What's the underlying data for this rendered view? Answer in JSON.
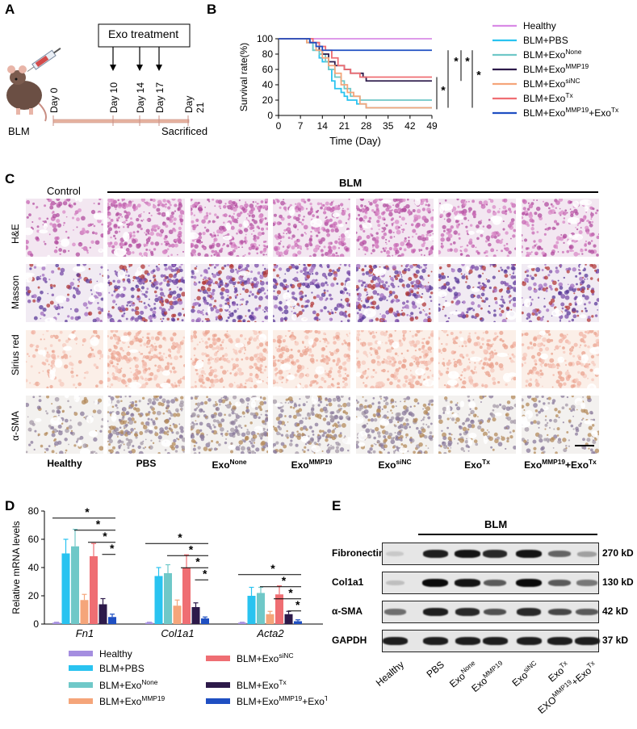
{
  "panels": {
    "a": "A",
    "b": "B",
    "c": "C",
    "d": "D",
    "e": "E"
  },
  "panel_a": {
    "treatment_label": "Exo treatment",
    "days": [
      "Day 0",
      "Day 10",
      "Day 14",
      "Day 17",
      "Day 21"
    ],
    "model_label": "BLM",
    "end_label": "Sacrificed"
  },
  "panel_b": {
    "chart_data": {
      "type": "line",
      "subtype": "kaplan-meier step",
      "xlabel": "Time (Day)",
      "ylabel": "Survival rate(%)",
      "xticks": [
        0,
        7,
        14,
        21,
        28,
        35,
        42,
        49
      ],
      "yticks": [
        0,
        20,
        40,
        60,
        80,
        100
      ],
      "xlim": [
        0,
        49
      ],
      "ylim": [
        0,
        100
      ],
      "significance": [
        "*",
        "*",
        "*",
        "*"
      ],
      "series": [
        {
          "name": "Healthy",
          "color": "#d98be6",
          "points": [
            [
              0,
              100
            ],
            [
              49,
              100
            ]
          ]
        },
        {
          "name": "BLM+PBS",
          "color": "#29c3f0",
          "points": [
            [
              0,
              100
            ],
            [
              7,
              100
            ],
            [
              9,
              95
            ],
            [
              11,
              85
            ],
            [
              13,
              75
            ],
            [
              14,
              70
            ],
            [
              16,
              60
            ],
            [
              17,
              45
            ],
            [
              18,
              35
            ],
            [
              20,
              30
            ],
            [
              21,
              25
            ],
            [
              22,
              20
            ],
            [
              25,
              15
            ],
            [
              28,
              10
            ],
            [
              49,
              10
            ]
          ]
        },
        {
          "name": "BLM+Exo",
          "sup": "None",
          "color": "#6fc8c8",
          "points": [
            [
              0,
              100
            ],
            [
              7,
              100
            ],
            [
              9,
              95
            ],
            [
              11,
              85
            ],
            [
              13,
              80
            ],
            [
              15,
              70
            ],
            [
              16,
              60
            ],
            [
              18,
              50
            ],
            [
              20,
              45
            ],
            [
              21,
              35
            ],
            [
              23,
              25
            ],
            [
              26,
              20
            ],
            [
              49,
              20
            ]
          ]
        },
        {
          "name": "BLM+Exo",
          "sup": "MMP19",
          "color": "#2d1a4a",
          "points": [
            [
              0,
              100
            ],
            [
              7,
              100
            ],
            [
              10,
              95
            ],
            [
              13,
              85
            ],
            [
              14,
              80
            ],
            [
              16,
              70
            ],
            [
              18,
              65
            ],
            [
              21,
              60
            ],
            [
              23,
              55
            ],
            [
              27,
              50
            ],
            [
              28,
              45
            ],
            [
              49,
              45
            ]
          ]
        },
        {
          "name": "BLM+Exo",
          "sup": "siNC",
          "color": "#f5a57a",
          "points": [
            [
              0,
              100
            ],
            [
              7,
              100
            ],
            [
              9,
              95
            ],
            [
              12,
              85
            ],
            [
              14,
              75
            ],
            [
              16,
              65
            ],
            [
              18,
              55
            ],
            [
              20,
              40
            ],
            [
              22,
              30
            ],
            [
              24,
              25
            ],
            [
              26,
              15
            ],
            [
              28,
              10
            ],
            [
              49,
              10
            ]
          ]
        },
        {
          "name": "BLM+Exo",
          "sup": "Tx",
          "color": "#ef6e73",
          "points": [
            [
              0,
              100
            ],
            [
              7,
              100
            ],
            [
              11,
              95
            ],
            [
              13,
              90
            ],
            [
              15,
              85
            ],
            [
              17,
              75
            ],
            [
              19,
              65
            ],
            [
              21,
              60
            ],
            [
              23,
              55
            ],
            [
              26,
              50
            ],
            [
              49,
              50
            ]
          ]
        },
        {
          "name": "BLM+Exo",
          "sup": "MMP19",
          "suffix": "+Exo",
          "sup2": "Tx",
          "color": "#1f4fc2",
          "points": [
            [
              0,
              100
            ],
            [
              7,
              100
            ],
            [
              10,
              95
            ],
            [
              12,
              90
            ],
            [
              14,
              85
            ],
            [
              49,
              85
            ]
          ]
        }
      ]
    }
  },
  "panel_c": {
    "group_label": "BLM",
    "control_label": "Control",
    "rows": [
      "H&E",
      "Masson",
      "Sirius red",
      "α-SMA"
    ],
    "columns": [
      {
        "text": "Healthy"
      },
      {
        "text": "PBS"
      },
      {
        "text": "Exo",
        "sup": "None"
      },
      {
        "text": "Exo",
        "sup": "MMP19"
      },
      {
        "text": "Exo",
        "sup": "siNC"
      },
      {
        "text": "Exo",
        "sup": "Tx"
      },
      {
        "text": "Exo",
        "sup": "MMP19",
        "suffix": "+Exo",
        "sup2": "Tx"
      }
    ]
  },
  "panel_d": {
    "chart_data": {
      "type": "bar",
      "ylabel": "Relative mRNA levels",
      "ylim": [
        0,
        80
      ],
      "yticks": [
        0,
        20,
        40,
        60,
        80
      ],
      "categories": [
        "Fn1",
        "Col1a1",
        "Acta2"
      ],
      "series": [
        {
          "name": "Healthy",
          "color": "#a58ee0",
          "values": [
            1,
            1,
            1
          ],
          "err": [
            0.3,
            0.3,
            0.3
          ]
        },
        {
          "name": "BLM+PBS",
          "color": "#29c3f0",
          "values": [
            50,
            34,
            20
          ],
          "err": [
            10,
            6,
            6
          ]
        },
        {
          "name": "BLM+Exo",
          "sup": "None",
          "color": "#6fc8c8",
          "values": [
            55,
            36,
            22
          ],
          "err": [
            12,
            6,
            4
          ]
        },
        {
          "name": "BLM+Exo",
          "sup": "MMP19",
          "color": "#f5a57a",
          "values": [
            17,
            13,
            7
          ],
          "err": [
            4,
            4,
            2
          ]
        },
        {
          "name": "BLM+Exo",
          "sup": "siNC",
          "color": "#ef6e73",
          "values": [
            48,
            40,
            21
          ],
          "err": [
            9,
            9,
            6
          ]
        },
        {
          "name": "BLM+Exo",
          "sup": "Tx",
          "color": "#2d1a4a",
          "values": [
            14,
            12,
            7
          ],
          "err": [
            4,
            3,
            2
          ]
        },
        {
          "name": "BLM+Exo",
          "sup": "MMP19",
          "suffix": "+Exo",
          "sup2": "Tx",
          "color": "#1f4fc2",
          "values": [
            5,
            4,
            2
          ],
          "err": [
            2,
            1,
            1
          ]
        }
      ],
      "significance": "*"
    }
  },
  "panel_e": {
    "group_label": "BLM",
    "proteins": [
      {
        "name": "Fibronectin",
        "kd": "270 kD",
        "levels": [
          0.05,
          0.9,
          0.95,
          0.85,
          0.95,
          0.55,
          0.25
        ]
      },
      {
        "name": "Col1a1",
        "kd": "130 kD",
        "levels": [
          0.1,
          1.0,
          0.95,
          0.6,
          1.0,
          0.6,
          0.45
        ]
      },
      {
        "name": "α-SMA",
        "kd": "42 kD",
        "levels": [
          0.5,
          0.9,
          0.85,
          0.65,
          0.85,
          0.7,
          0.6
        ]
      },
      {
        "name": "GAPDH",
        "kd": "37 kD",
        "levels": [
          0.9,
          0.9,
          0.9,
          0.9,
          0.9,
          0.9,
          0.9
        ]
      }
    ],
    "lanes": [
      {
        "text": "Healthy"
      },
      {
        "text": "PBS"
      },
      {
        "text": "Exo",
        "sup": "None"
      },
      {
        "text": "Exo",
        "sup": "MMP19"
      },
      {
        "text": "Exo",
        "sup": "siNC"
      },
      {
        "text": "Exo",
        "sup": "Tx"
      },
      {
        "text": "EXO",
        "sup": "MMP19",
        "suffix": "+Exo",
        "sup2": "Tx"
      }
    ]
  }
}
